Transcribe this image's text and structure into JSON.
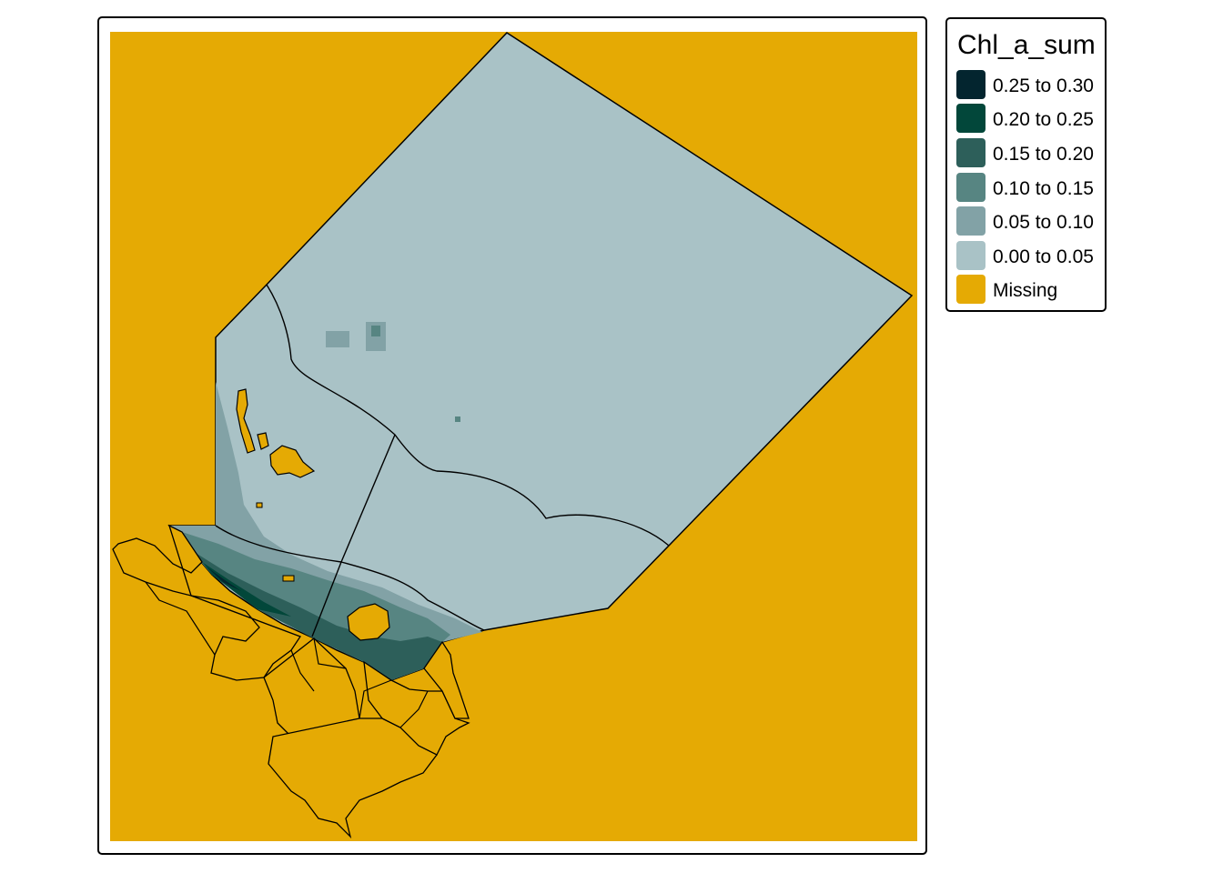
{
  "legend": {
    "title": "Chl_a_sum",
    "items": [
      {
        "label": "0.25 to 0.30",
        "color": "#03252f"
      },
      {
        "label": "0.20 to 0.25",
        "color": "#02473a"
      },
      {
        "label": "0.15 to 0.20",
        "color": "#2d5f5a"
      },
      {
        "label": "0.10 to 0.15",
        "color": "#578582"
      },
      {
        "label": "0.05 to 0.10",
        "color": "#82a2a6"
      },
      {
        "label": "0.00 to 0.05",
        "color": "#a9c2c6"
      },
      {
        "label": "Missing",
        "color": "#e5aa04"
      }
    ]
  },
  "map": {
    "missing_color": "#e5aa04",
    "boundary_color": "#000000"
  }
}
